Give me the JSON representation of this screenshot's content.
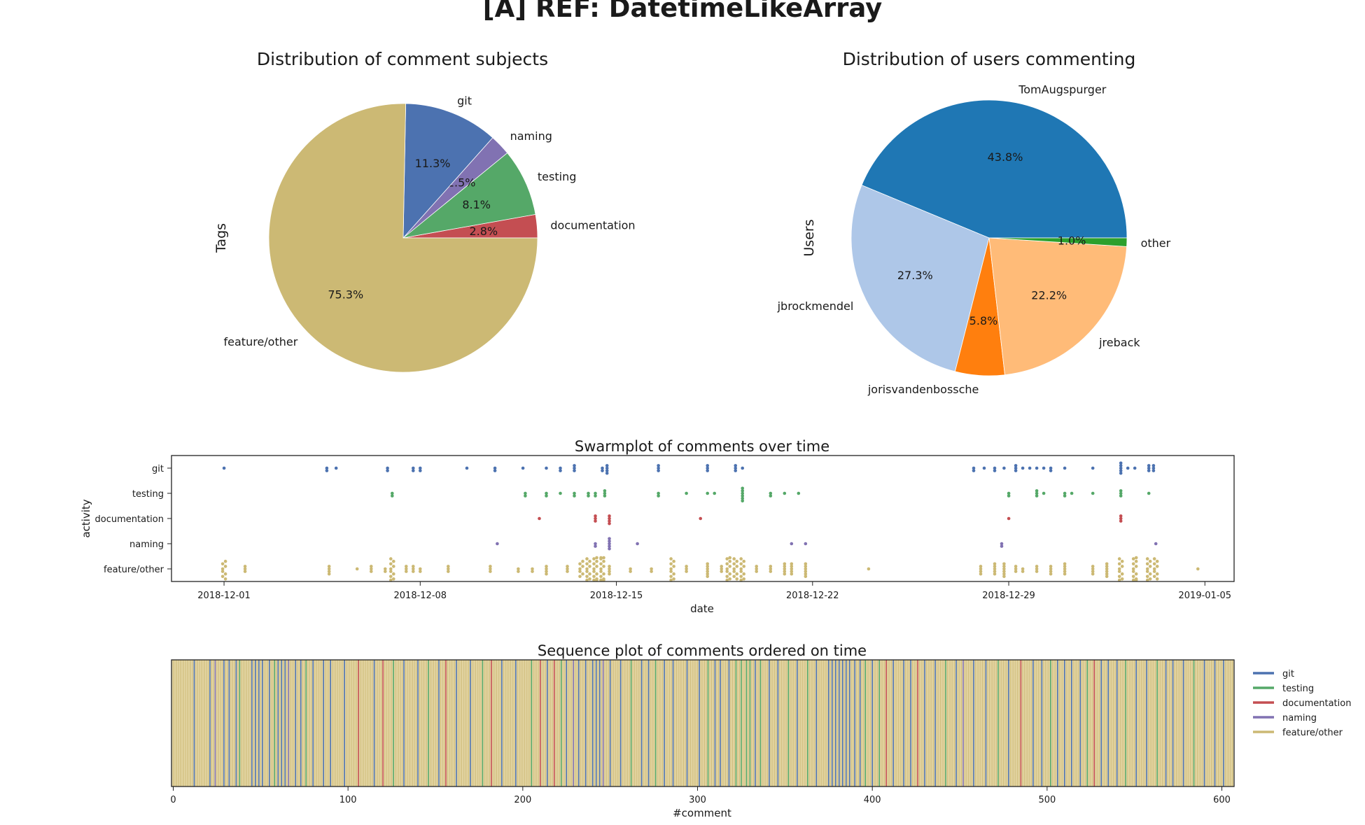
{
  "page_title": "[A] REF: DatetimeLikeArray",
  "colors": {
    "git": "#4c72b0",
    "testing": "#55a868",
    "documentation": "#c44e52",
    "naming": "#8172b2",
    "feature/other": "#ccb974",
    "TomAugspurger": "#1f77b4",
    "jbrockmendel": "#aec7e8",
    "jorisvandenbossche": "#ff7f0e",
    "jreback": "#ffbb78",
    "other": "#2ca02c"
  },
  "chart_data": [
    {
      "type": "pie",
      "title": "Distribution of comment subjects",
      "ylabel": "Tags",
      "slices": [
        {
          "label": "documentation",
          "pct": 2.8,
          "pct_label": "2.8%"
        },
        {
          "label": "testing",
          "pct": 8.1,
          "pct_label": "8.1%"
        },
        {
          "label": "naming",
          "pct": 2.5,
          "pct_label": "2.5%"
        },
        {
          "label": "git",
          "pct": 11.3,
          "pct_label": "11.3%"
        },
        {
          "label": "feature/other",
          "pct": 75.3,
          "pct_label": "75.3%"
        }
      ]
    },
    {
      "type": "pie",
      "title": "Distribution of users commenting",
      "ylabel": "Users",
      "slices": [
        {
          "label": "TomAugspurger",
          "pct": 43.8,
          "pct_label": "43.8%"
        },
        {
          "label": "jbrockmendel",
          "pct": 27.3,
          "pct_label": "27.3%"
        },
        {
          "label": "jorisvandenbossche",
          "pct": 5.8,
          "pct_label": "5.8%"
        },
        {
          "label": "jreback",
          "pct": 22.2,
          "pct_label": "22.2%"
        },
        {
          "label": "other",
          "pct": 1.0,
          "pct_label": "1.0%"
        }
      ]
    },
    {
      "type": "scatter",
      "title": "Swarmplot of comments over time",
      "xlabel": "date",
      "ylabel": "activity",
      "categories": [
        "git",
        "testing",
        "documentation",
        "naming",
        "feature/other"
      ],
      "x_ticks": [
        "2018-12-01",
        "2018-12-08",
        "2018-12-15",
        "2018-12-22",
        "2018-12-29",
        "2019-01-05"
      ],
      "xlim": [
        "2018-11-29T03:00",
        "2019-01-06T01:00"
      ],
      "series": [
        {
          "category": "git",
          "x": [
            "2018-12-01T00:00",
            "2018-12-04T16:00",
            "2018-12-05T00:00",
            "2018-12-06T20:00",
            "2018-12-07T18:00",
            "2018-12-08T00:00",
            "2018-12-09T16:00",
            "2018-12-10T16:00",
            "2018-12-11T16:00",
            "2018-12-12T12:00",
            "2018-12-13T00:00",
            "2018-12-13T12:00",
            "2018-12-14T12:00",
            "2018-12-14T16:00",
            "2018-12-16T12:00",
            "2018-12-18T06:00",
            "2018-12-19T06:00",
            "2018-12-19T12:00",
            "2018-12-27T18:00",
            "2018-12-28T03:00",
            "2018-12-28T12:00",
            "2018-12-28T20:00",
            "2018-12-29T06:00",
            "2018-12-29T12:00",
            "2018-12-29T18:00",
            "2018-12-30T00:00",
            "2018-12-30T06:00",
            "2018-12-30T12:00",
            "2018-12-31T00:00",
            "2019-01-01T00:00",
            "2019-01-02T00:00",
            "2019-01-02T06:00",
            "2019-01-02T12:00",
            "2019-01-03T00:00",
            "2019-01-03T04:00"
          ],
          "n": [
            1,
            2,
            1,
            2,
            2,
            2,
            1,
            2,
            1,
            1,
            2,
            3,
            2,
            4,
            3,
            3,
            3,
            1,
            2,
            1,
            2,
            1,
            3,
            1,
            1,
            1,
            1,
            2,
            1,
            1,
            5,
            1,
            1,
            3,
            3
          ]
        },
        {
          "category": "testing",
          "x": [
            "2018-12-07T00:00",
            "2018-12-11T18:00",
            "2018-12-12T12:00",
            "2018-12-13T00:00",
            "2018-12-13T12:00",
            "2018-12-14T00:00",
            "2018-12-14T06:00",
            "2018-12-14T14:00",
            "2018-12-16T12:00",
            "2018-12-17T12:00",
            "2018-12-18T06:00",
            "2018-12-18T12:00",
            "2018-12-19T12:00",
            "2018-12-20T12:00",
            "2018-12-21T00:00",
            "2018-12-21T12:00",
            "2018-12-29T00:00",
            "2018-12-30T00:00",
            "2018-12-30T06:00",
            "2018-12-31T00:00",
            "2018-12-31T06:00",
            "2019-01-01T00:00",
            "2019-01-02T00:00",
            "2019-01-03T00:00"
          ],
          "n": [
            2,
            2,
            2,
            1,
            2,
            2,
            2,
            3,
            2,
            1,
            1,
            1,
            6,
            2,
            1,
            1,
            2,
            3,
            1,
            2,
            1,
            1,
            3,
            1
          ]
        },
        {
          "category": "documentation",
          "x": [
            "2018-12-12T06:00",
            "2018-12-14T06:00",
            "2018-12-14T18:00",
            "2018-12-18T00:00",
            "2018-12-29T00:00",
            "2019-01-02T00:00"
          ],
          "n": [
            1,
            3,
            4,
            1,
            1,
            3
          ]
        },
        {
          "category": "naming",
          "x": [
            "2018-12-10T18:00",
            "2018-12-14T06:00",
            "2018-12-14T18:00",
            "2018-12-15T18:00",
            "2018-12-21T06:00",
            "2018-12-21T18:00",
            "2018-12-28T18:00",
            "2019-01-03T06:00"
          ],
          "n": [
            1,
            2,
            5,
            1,
            1,
            1,
            2,
            1
          ]
        },
        {
          "category": "feature/other",
          "x": [
            "2018-12-01T00:00",
            "2018-12-01T18:00",
            "2018-12-04T18:00",
            "2018-12-05T18:00",
            "2018-12-06T06:00",
            "2018-12-06T18:00",
            "2018-12-07T00:00",
            "2018-12-07T12:00",
            "2018-12-07T18:00",
            "2018-12-08T00:00",
            "2018-12-09T00:00",
            "2018-12-10T12:00",
            "2018-12-11T12:00",
            "2018-12-12T00:00",
            "2018-12-12T12:00",
            "2018-12-13T06:00",
            "2018-12-13T18:00",
            "2018-12-14T00:00",
            "2018-12-14T06:00",
            "2018-12-14T12:00",
            "2018-12-14T18:00",
            "2018-12-15T12:00",
            "2018-12-16T06:00",
            "2018-12-17T00:00",
            "2018-12-17T12:00",
            "2018-12-18T06:00",
            "2018-12-18T18:00",
            "2018-12-19T00:00",
            "2018-12-19T06:00",
            "2018-12-19T12:00",
            "2018-12-20T00:00",
            "2018-12-20T12:00",
            "2018-12-21T00:00",
            "2018-12-21T06:00",
            "2018-12-21T18:00",
            "2018-12-24T00:00",
            "2018-12-28T00:00",
            "2018-12-28T12:00",
            "2018-12-28T20:00",
            "2018-12-29T06:00",
            "2018-12-29T12:00",
            "2018-12-30T00:00",
            "2018-12-30T12:00",
            "2018-12-31T00:00",
            "2019-01-01T00:00",
            "2019-01-01T12:00",
            "2019-01-02T00:00",
            "2019-01-02T12:00",
            "2019-01-03T00:00",
            "2019-01-03T06:00",
            "2019-01-04T18:00"
          ],
          "n": [
            8,
            3,
            4,
            1,
            3,
            2,
            10,
            3,
            3,
            2,
            3,
            3,
            2,
            2,
            4,
            3,
            7,
            10,
            12,
            14,
            4,
            2,
            2,
            10,
            3,
            6,
            3,
            11,
            9,
            10,
            3,
            3,
            5,
            5,
            6,
            1,
            4,
            5,
            6,
            3,
            2,
            3,
            4,
            5,
            4,
            6,
            10,
            12,
            10,
            9,
            1
          ]
        }
      ]
    },
    {
      "type": "sequence",
      "title": "Sequence plot of comments ordered on time",
      "xlabel": "#comment",
      "x_ticks": [
        0,
        100,
        200,
        300,
        400,
        500,
        600
      ],
      "xlim": [
        -1,
        607
      ],
      "legend_position": "right",
      "legend": [
        "git",
        "testing",
        "documentation",
        "naming",
        "feature/other"
      ],
      "events": [
        {
          "i": 12,
          "tag": "git"
        },
        {
          "i": 21,
          "tag": "git"
        },
        {
          "i": 24,
          "tag": "naming"
        },
        {
          "i": 29,
          "tag": "git"
        },
        {
          "i": 32,
          "tag": "git"
        },
        {
          "i": 36,
          "tag": "git"
        },
        {
          "i": 38,
          "tag": "testing"
        },
        {
          "i": 45,
          "tag": "git"
        },
        {
          "i": 47,
          "tag": "git"
        },
        {
          "i": 49,
          "tag": "git"
        },
        {
          "i": 51,
          "tag": "git"
        },
        {
          "i": 55,
          "tag": "git"
        },
        {
          "i": 58,
          "tag": "testing"
        },
        {
          "i": 60,
          "tag": "git"
        },
        {
          "i": 62,
          "tag": "git"
        },
        {
          "i": 64,
          "tag": "git"
        },
        {
          "i": 66,
          "tag": "naming"
        },
        {
          "i": 70,
          "tag": "git"
        },
        {
          "i": 73,
          "tag": "git"
        },
        {
          "i": 76,
          "tag": "testing"
        },
        {
          "i": 80,
          "tag": "git"
        },
        {
          "i": 86,
          "tag": "git"
        },
        {
          "i": 90,
          "tag": "git"
        },
        {
          "i": 98,
          "tag": "git"
        },
        {
          "i": 106,
          "tag": "documentation"
        },
        {
          "i": 115,
          "tag": "git"
        },
        {
          "i": 120,
          "tag": "documentation"
        },
        {
          "i": 126,
          "tag": "testing"
        },
        {
          "i": 132,
          "tag": "git"
        },
        {
          "i": 140,
          "tag": "git"
        },
        {
          "i": 146,
          "tag": "testing"
        },
        {
          "i": 152,
          "tag": "git"
        },
        {
          "i": 156,
          "tag": "documentation"
        },
        {
          "i": 162,
          "tag": "git"
        },
        {
          "i": 170,
          "tag": "git"
        },
        {
          "i": 177,
          "tag": "testing"
        },
        {
          "i": 182,
          "tag": "documentation"
        },
        {
          "i": 188,
          "tag": "git"
        },
        {
          "i": 196,
          "tag": "git"
        },
        {
          "i": 205,
          "tag": "testing"
        },
        {
          "i": 210,
          "tag": "documentation"
        },
        {
          "i": 214,
          "tag": "git"
        },
        {
          "i": 218,
          "tag": "documentation"
        },
        {
          "i": 222,
          "tag": "testing"
        },
        {
          "i": 225,
          "tag": "git"
        },
        {
          "i": 229,
          "tag": "naming"
        },
        {
          "i": 232,
          "tag": "git"
        },
        {
          "i": 236,
          "tag": "git"
        },
        {
          "i": 240,
          "tag": "git"
        },
        {
          "i": 242,
          "tag": "git"
        },
        {
          "i": 244,
          "tag": "git"
        },
        {
          "i": 246,
          "tag": "naming"
        },
        {
          "i": 250,
          "tag": "git"
        },
        {
          "i": 256,
          "tag": "git"
        },
        {
          "i": 262,
          "tag": "testing"
        },
        {
          "i": 268,
          "tag": "git"
        },
        {
          "i": 272,
          "tag": "git"
        },
        {
          "i": 276,
          "tag": "testing"
        },
        {
          "i": 281,
          "tag": "git"
        },
        {
          "i": 286,
          "tag": "git"
        },
        {
          "i": 294,
          "tag": "git"
        },
        {
          "i": 301,
          "tag": "git"
        },
        {
          "i": 306,
          "tag": "testing"
        },
        {
          "i": 310,
          "tag": "git"
        },
        {
          "i": 313,
          "tag": "git"
        },
        {
          "i": 318,
          "tag": "git"
        },
        {
          "i": 322,
          "tag": "testing"
        },
        {
          "i": 325,
          "tag": "testing"
        },
        {
          "i": 328,
          "tag": "testing"
        },
        {
          "i": 330,
          "tag": "testing"
        },
        {
          "i": 333,
          "tag": "git"
        },
        {
          "i": 336,
          "tag": "testing"
        },
        {
          "i": 341,
          "tag": "git"
        },
        {
          "i": 346,
          "tag": "git"
        },
        {
          "i": 352,
          "tag": "testing"
        },
        {
          "i": 357,
          "tag": "git"
        },
        {
          "i": 363,
          "tag": "testing"
        },
        {
          "i": 368,
          "tag": "git"
        },
        {
          "i": 375,
          "tag": "git"
        },
        {
          "i": 377,
          "tag": "git"
        },
        {
          "i": 379,
          "tag": "git"
        },
        {
          "i": 381,
          "tag": "git"
        },
        {
          "i": 383,
          "tag": "git"
        },
        {
          "i": 385,
          "tag": "git"
        },
        {
          "i": 387,
          "tag": "git"
        },
        {
          "i": 390,
          "tag": "git"
        },
        {
          "i": 393,
          "tag": "git"
        },
        {
          "i": 396,
          "tag": "testing"
        },
        {
          "i": 400,
          "tag": "git"
        },
        {
          "i": 404,
          "tag": "testing"
        },
        {
          "i": 408,
          "tag": "documentation"
        },
        {
          "i": 412,
          "tag": "git"
        },
        {
          "i": 418,
          "tag": "git"
        },
        {
          "i": 422,
          "tag": "git"
        },
        {
          "i": 426,
          "tag": "documentation"
        },
        {
          "i": 430,
          "tag": "git"
        },
        {
          "i": 436,
          "tag": "git"
        },
        {
          "i": 442,
          "tag": "testing"
        },
        {
          "i": 448,
          "tag": "git"
        },
        {
          "i": 452,
          "tag": "naming"
        },
        {
          "i": 458,
          "tag": "git"
        },
        {
          "i": 465,
          "tag": "git"
        },
        {
          "i": 472,
          "tag": "testing"
        },
        {
          "i": 478,
          "tag": "git"
        },
        {
          "i": 485,
          "tag": "documentation"
        },
        {
          "i": 492,
          "tag": "git"
        },
        {
          "i": 497,
          "tag": "git"
        },
        {
          "i": 502,
          "tag": "testing"
        },
        {
          "i": 506,
          "tag": "git"
        },
        {
          "i": 510,
          "tag": "git"
        },
        {
          "i": 514,
          "tag": "git"
        },
        {
          "i": 519,
          "tag": "git"
        },
        {
          "i": 523,
          "tag": "testing"
        },
        {
          "i": 527,
          "tag": "documentation"
        },
        {
          "i": 531,
          "tag": "git"
        },
        {
          "i": 535,
          "tag": "git"
        },
        {
          "i": 540,
          "tag": "git"
        },
        {
          "i": 545,
          "tag": "testing"
        },
        {
          "i": 551,
          "tag": "git"
        },
        {
          "i": 557,
          "tag": "git"
        },
        {
          "i": 563,
          "tag": "testing"
        },
        {
          "i": 568,
          "tag": "git"
        },
        {
          "i": 572,
          "tag": "git"
        },
        {
          "i": 578,
          "tag": "git"
        },
        {
          "i": 584,
          "tag": "testing"
        },
        {
          "i": 590,
          "tag": "git"
        },
        {
          "i": 596,
          "tag": "git"
        },
        {
          "i": 601,
          "tag": "git"
        }
      ]
    }
  ]
}
